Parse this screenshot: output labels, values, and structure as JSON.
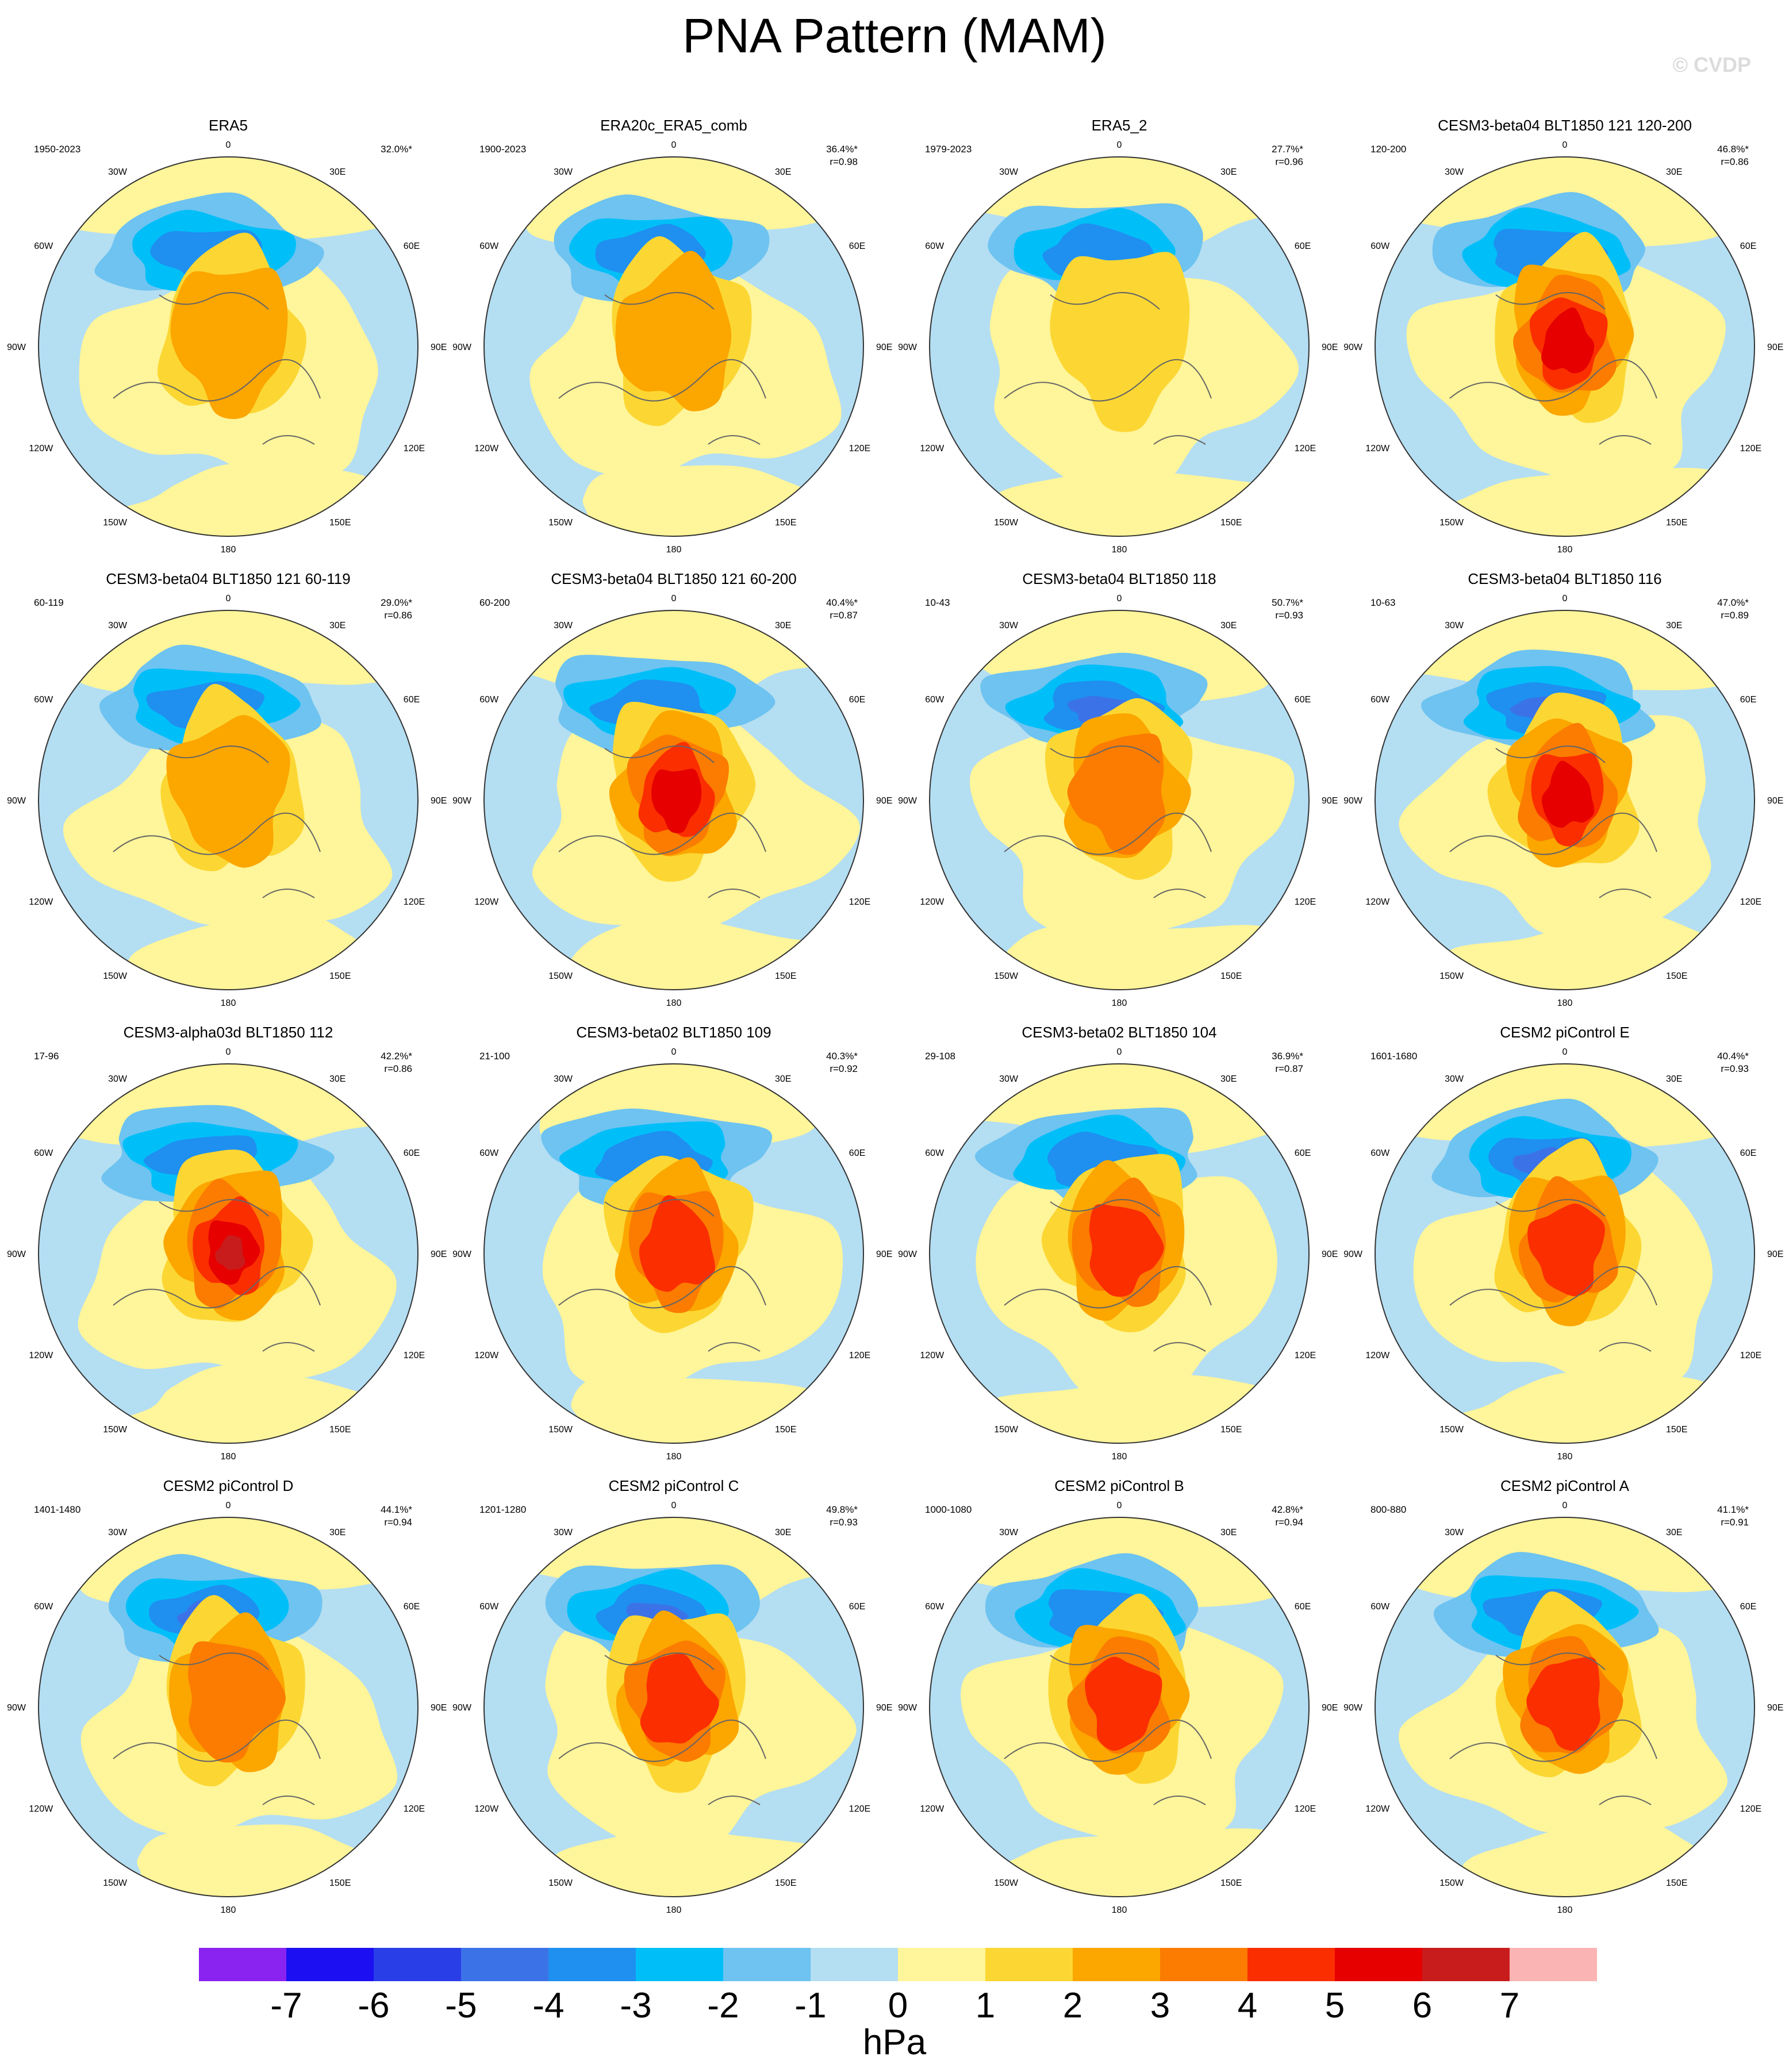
{
  "title": "PNA Pattern (MAM)",
  "watermark": "© CVDP",
  "lon_labels": [
    "180",
    "150E",
    "120E",
    "90E",
    "60E",
    "30E",
    "0",
    "30W",
    "60W",
    "90W",
    "120W",
    "150W"
  ],
  "colorbar": {
    "ticks": [
      "-7",
      "-6",
      "-5",
      "-4",
      "-3",
      "-2",
      "-1",
      "0",
      "1",
      "2",
      "3",
      "4",
      "5",
      "6",
      "7"
    ],
    "unit": "hPa",
    "colors": [
      "#8a22f0",
      "#1c10f2",
      "#2a3ee8",
      "#3c72e8",
      "#1f8ff0",
      "#00bff8",
      "#6ec3f0",
      "#b4def2",
      "#fff59a",
      "#fcd733",
      "#fca600",
      "#fb7c00",
      "#fb2e00",
      "#e60000",
      "#c81c1c",
      "#fbb4b4"
    ]
  },
  "panels": [
    {
      "name": "ERA5",
      "years": "1950-2023",
      "pct": "32.0%*",
      "r": ""
    },
    {
      "name": "ERA20c_ERA5_comb",
      "years": "1900-2023",
      "pct": "36.4%*",
      "r": "r=0.98"
    },
    {
      "name": "ERA5_2",
      "years": "1979-2023",
      "pct": "27.7%*",
      "r": "r=0.96"
    },
    {
      "name": "CESM3-beta04 BLT1850 121 120-200",
      "years": "120-200",
      "pct": "46.8%*",
      "r": "r=0.86"
    },
    {
      "name": "CESM3-beta04 BLT1850 121 60-119",
      "years": "60-119",
      "pct": "29.0%*",
      "r": "r=0.86"
    },
    {
      "name": "CESM3-beta04 BLT1850 121 60-200",
      "years": "60-200",
      "pct": "40.4%*",
      "r": "r=0.87"
    },
    {
      "name": "CESM3-beta04 BLT1850 118",
      "years": "10-43",
      "pct": "50.7%*",
      "r": "r=0.93"
    },
    {
      "name": "CESM3-beta04 BLT1850 116",
      "years": "10-63",
      "pct": "47.0%*",
      "r": "r=0.89"
    },
    {
      "name": "CESM3-alpha03d BLT1850 112",
      "years": "17-96",
      "pct": "42.2%*",
      "r": "r=0.86"
    },
    {
      "name": "CESM3-beta02 BLT1850 109",
      "years": "21-100",
      "pct": "40.3%*",
      "r": "r=0.92"
    },
    {
      "name": "CESM3-beta02 BLT1850 104",
      "years": "29-108",
      "pct": "36.9%*",
      "r": "r=0.87"
    },
    {
      "name": "CESM2 piControl E",
      "years": "1601-1680",
      "pct": "40.4%*",
      "r": "r=0.93"
    },
    {
      "name": "CESM2 piControl D",
      "years": "1401-1480",
      "pct": "44.1%*",
      "r": "r=0.94"
    },
    {
      "name": "CESM2 piControl C",
      "years": "1201-1280",
      "pct": "49.8%*",
      "r": "r=0.93"
    },
    {
      "name": "CESM2 piControl B",
      "years": "1000-1080",
      "pct": "42.8%*",
      "r": "r=0.94"
    },
    {
      "name": "CESM2 piControl A",
      "years": "800-880",
      "pct": "41.1%*",
      "r": "r=0.91"
    }
  ]
}
